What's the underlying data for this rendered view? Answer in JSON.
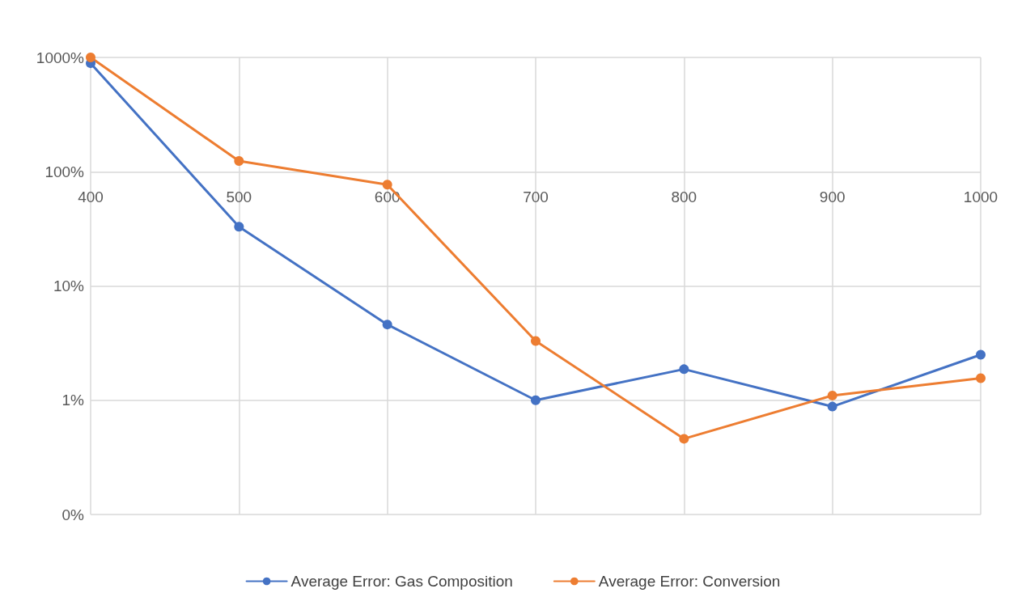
{
  "chart_data": {
    "type": "line",
    "x": [
      400,
      500,
      600,
      700,
      800,
      900,
      1000
    ],
    "series": [
      {
        "name": "Average Error: Gas Composition",
        "color": "#4472c4",
        "values": [
          8.9,
          0.33,
          0.046,
          0.01,
          0.0187,
          0.0088,
          0.025
        ]
      },
      {
        "name": "Average Error: Conversion",
        "color": "#ed7d31",
        "values": [
          10,
          1.24,
          0.77,
          0.033,
          0.0046,
          0.011,
          0.0156
        ]
      }
    ],
    "xlim": [
      400,
      1000
    ],
    "xticks": [
      400,
      500,
      600,
      700,
      800,
      900,
      1000
    ],
    "ylim": [
      0.001,
      10
    ],
    "yticks": [
      {
        "value": 0.001,
        "label": "0%"
      },
      {
        "value": 0.01,
        "label": "1%"
      },
      {
        "value": 0.1,
        "label": "10%"
      },
      {
        "value": 1,
        "label": "100%"
      },
      {
        "value": 10,
        "label": "1000%"
      }
    ],
    "log": "y",
    "grid": true,
    "legend": "bottom",
    "marker": "circle",
    "line_style": "solid"
  }
}
